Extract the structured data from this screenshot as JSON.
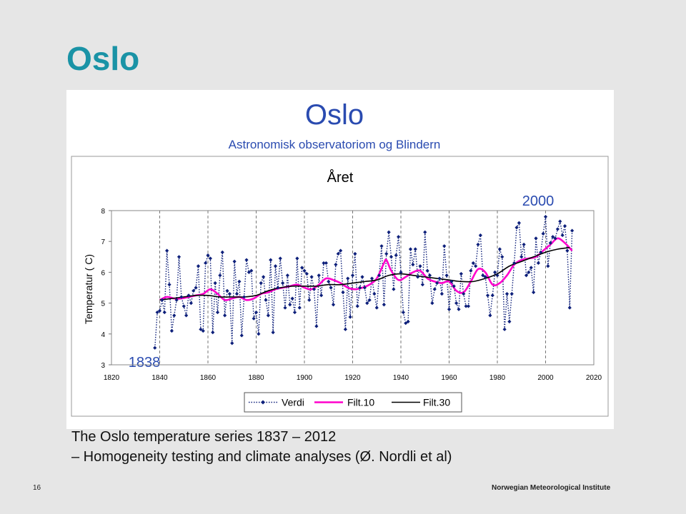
{
  "slide": {
    "title": "Oslo",
    "caption_line1": "The Oslo temperature series 1837 – 2012",
    "caption_line2": "– Homogeneity testing and climate analyses (Ø. Nordli et al)",
    "slide_number": "16",
    "footer": "Norwegian Meteorological Institute"
  },
  "colors": {
    "title": "#1a93a6",
    "chart_title": "#2a4bb0",
    "verdi": "#0d1f7a",
    "filt10": "#ff00cc",
    "filt30": "#000000"
  },
  "chart_data": {
    "type": "line",
    "title": "Oslo",
    "subtitle": "Astronomisk observatoriom og Blindern",
    "plot_title": "Året",
    "ylabel": "Temperatur ( C)",
    "xlabel": "",
    "xlim": [
      1820,
      2020
    ],
    "ylim": [
      3,
      8
    ],
    "xticks": [
      "1820",
      "1840",
      "1860",
      "1880",
      "1900",
      "1920",
      "1940",
      "1960",
      "1980",
      "2000",
      "2020"
    ],
    "yticks": [
      "3",
      "4",
      "5",
      "6",
      "7",
      "8"
    ],
    "annotations": [
      "1838",
      "2000"
    ],
    "legend_position": "bottom",
    "grid": true,
    "series": [
      {
        "name": "Verdi",
        "style": "dotted-diamond",
        "x": [
          1838,
          1839,
          1840,
          1841,
          1842,
          1843,
          1844,
          1845,
          1846,
          1847,
          1848,
          1849,
          1850,
          1851,
          1852,
          1853,
          1854,
          1855,
          1856,
          1857,
          1858,
          1859,
          1860,
          1861,
          1862,
          1863,
          1864,
          1865,
          1866,
          1867,
          1868,
          1869,
          1870,
          1871,
          1872,
          1873,
          1874,
          1875,
          1876,
          1877,
          1878,
          1879,
          1880,
          1881,
          1882,
          1883,
          1884,
          1885,
          1886,
          1887,
          1888,
          1889,
          1890,
          1891,
          1892,
          1893,
          1894,
          1895,
          1896,
          1897,
          1898,
          1899,
          1900,
          1901,
          1902,
          1903,
          1904,
          1905,
          1906,
          1907,
          1908,
          1909,
          1910,
          1911,
          1912,
          1913,
          1914,
          1915,
          1916,
          1917,
          1918,
          1919,
          1920,
          1921,
          1922,
          1923,
          1924,
          1925,
          1926,
          1927,
          1928,
          1929,
          1930,
          1931,
          1932,
          1933,
          1934,
          1935,
          1936,
          1937,
          1938,
          1939,
          1940,
          1941,
          1942,
          1943,
          1944,
          1945,
          1946,
          1947,
          1948,
          1949,
          1950,
          1951,
          1952,
          1953,
          1954,
          1955,
          1956,
          1957,
          1958,
          1959,
          1960,
          1961,
          1962,
          1963,
          1964,
          1965,
          1966,
          1967,
          1968,
          1969,
          1970,
          1971,
          1972,
          1973,
          1974,
          1975,
          1976,
          1977,
          1978,
          1979,
          1980,
          1981,
          1982,
          1983,
          1984,
          1985,
          1986,
          1987,
          1988,
          1989,
          1990,
          1991,
          1992,
          1993,
          1994,
          1995,
          1996,
          1997,
          1998,
          1999,
          2000,
          2001,
          2002,
          2003,
          2004,
          2005,
          2006,
          2007,
          2008,
          2009,
          2010,
          2011
        ],
        "y": [
          3.55,
          4.7,
          4.75,
          5.1,
          4.7,
          6.7,
          5.6,
          4.1,
          4.6,
          5.1,
          6.5,
          5.2,
          4.9,
          4.6,
          5.25,
          5.0,
          5.4,
          5.5,
          6.2,
          4.15,
          4.1,
          6.3,
          6.55,
          6.45,
          4.05,
          5.65,
          4.7,
          5.9,
          6.65,
          4.6,
          5.4,
          5.3,
          3.7,
          6.35,
          5.3,
          5.7,
          3.95,
          5.2,
          6.4,
          6.0,
          6.05,
          4.5,
          4.7,
          4.0,
          5.65,
          5.85,
          5.1,
          4.6,
          6.4,
          4.05,
          6.2,
          5.5,
          6.45,
          5.65,
          4.85,
          5.9,
          4.95,
          5.15,
          4.7,
          6.45,
          4.85,
          6.15,
          6.05,
          5.95,
          5.1,
          5.85,
          5.45,
          4.25,
          5.9,
          5.25,
          6.3,
          6.3,
          5.7,
          5.5,
          4.95,
          6.25,
          6.6,
          6.7,
          5.35,
          4.15,
          5.8,
          4.55,
          5.9,
          6.6,
          4.9,
          5.5,
          5.85,
          5.5,
          5.0,
          5.1,
          5.8,
          5.3,
          4.85,
          5.9,
          6.85,
          4.95,
          6.6,
          7.3,
          6.5,
          5.45,
          6.55,
          7.15,
          6.0,
          4.7,
          4.35,
          4.4,
          6.75,
          6.25,
          6.75,
          5.85,
          6.2,
          5.6,
          7.3,
          6.05,
          5.9,
          5.0,
          5.45,
          5.65,
          5.8,
          5.3,
          6.85,
          5.9,
          4.8,
          5.7,
          5.55,
          5.0,
          4.8,
          5.95,
          5.3,
          4.9,
          4.9,
          6.05,
          6.3,
          6.2,
          6.9,
          7.2,
          5.9,
          5.85,
          5.25,
          4.6,
          5.25,
          6.0,
          5.9,
          6.75,
          6.5,
          4.15,
          5.3,
          4.4,
          5.3,
          6.3,
          7.45,
          7.6,
          6.5,
          6.9,
          5.9,
          6.0,
          6.15,
          5.35,
          7.1,
          6.3,
          6.65,
          7.25,
          7.8,
          6.2,
          6.95,
          7.15,
          7.1,
          7.4,
          7.65,
          7.2,
          7.5,
          6.7,
          4.85,
          7.35
        ]
      },
      {
        "name": "Filt.10",
        "style": "smooth",
        "x": [
          1840,
          1843,
          1846,
          1849,
          1852,
          1855,
          1858,
          1861,
          1864,
          1867,
          1870,
          1873,
          1876,
          1879,
          1882,
          1885,
          1888,
          1891,
          1894,
          1897,
          1900,
          1903,
          1906,
          1909,
          1912,
          1915,
          1918,
          1921,
          1924,
          1927,
          1930,
          1933,
          1934,
          1936,
          1939,
          1942,
          1945,
          1948,
          1951,
          1954,
          1957,
          1960,
          1963,
          1966,
          1969,
          1972,
          1975,
          1978,
          1981,
          1984,
          1987,
          1990,
          1993,
          1996,
          1999,
          2002,
          2005,
          2008,
          2011
        ],
        "y": [
          5.1,
          5.2,
          5.15,
          5.15,
          5.2,
          5.25,
          5.3,
          5.45,
          5.3,
          5.1,
          5.15,
          5.2,
          5.1,
          5.15,
          5.3,
          5.35,
          5.45,
          5.5,
          5.55,
          5.6,
          5.5,
          5.45,
          5.6,
          5.8,
          5.75,
          5.65,
          5.5,
          5.45,
          5.5,
          5.6,
          5.8,
          6.3,
          6.4,
          6.05,
          5.75,
          5.85,
          6.0,
          6.05,
          5.8,
          5.7,
          5.65,
          5.7,
          5.4,
          5.35,
          5.7,
          6.1,
          6.0,
          5.6,
          5.65,
          5.9,
          6.25,
          6.4,
          6.45,
          6.5,
          6.7,
          6.9,
          7.1,
          6.95,
          6.7
        ]
      },
      {
        "name": "Filt.30",
        "style": "smooth",
        "x": [
          1840,
          1845,
          1850,
          1855,
          1860,
          1865,
          1870,
          1875,
          1880,
          1885,
          1890,
          1895,
          1900,
          1905,
          1910,
          1915,
          1920,
          1925,
          1930,
          1935,
          1940,
          1945,
          1950,
          1955,
          1960,
          1965,
          1970,
          1975,
          1980,
          1985,
          1990,
          1995,
          2000,
          2005,
          2010
        ],
        "y": [
          5.1,
          5.15,
          5.2,
          5.25,
          5.25,
          5.2,
          5.2,
          5.2,
          5.25,
          5.4,
          5.5,
          5.55,
          5.55,
          5.55,
          5.6,
          5.6,
          5.65,
          5.7,
          5.75,
          5.9,
          5.95,
          5.9,
          5.85,
          5.8,
          5.75,
          5.7,
          5.7,
          5.8,
          5.95,
          6.2,
          6.35,
          6.5,
          6.65,
          6.75,
          6.8
        ]
      }
    ]
  }
}
